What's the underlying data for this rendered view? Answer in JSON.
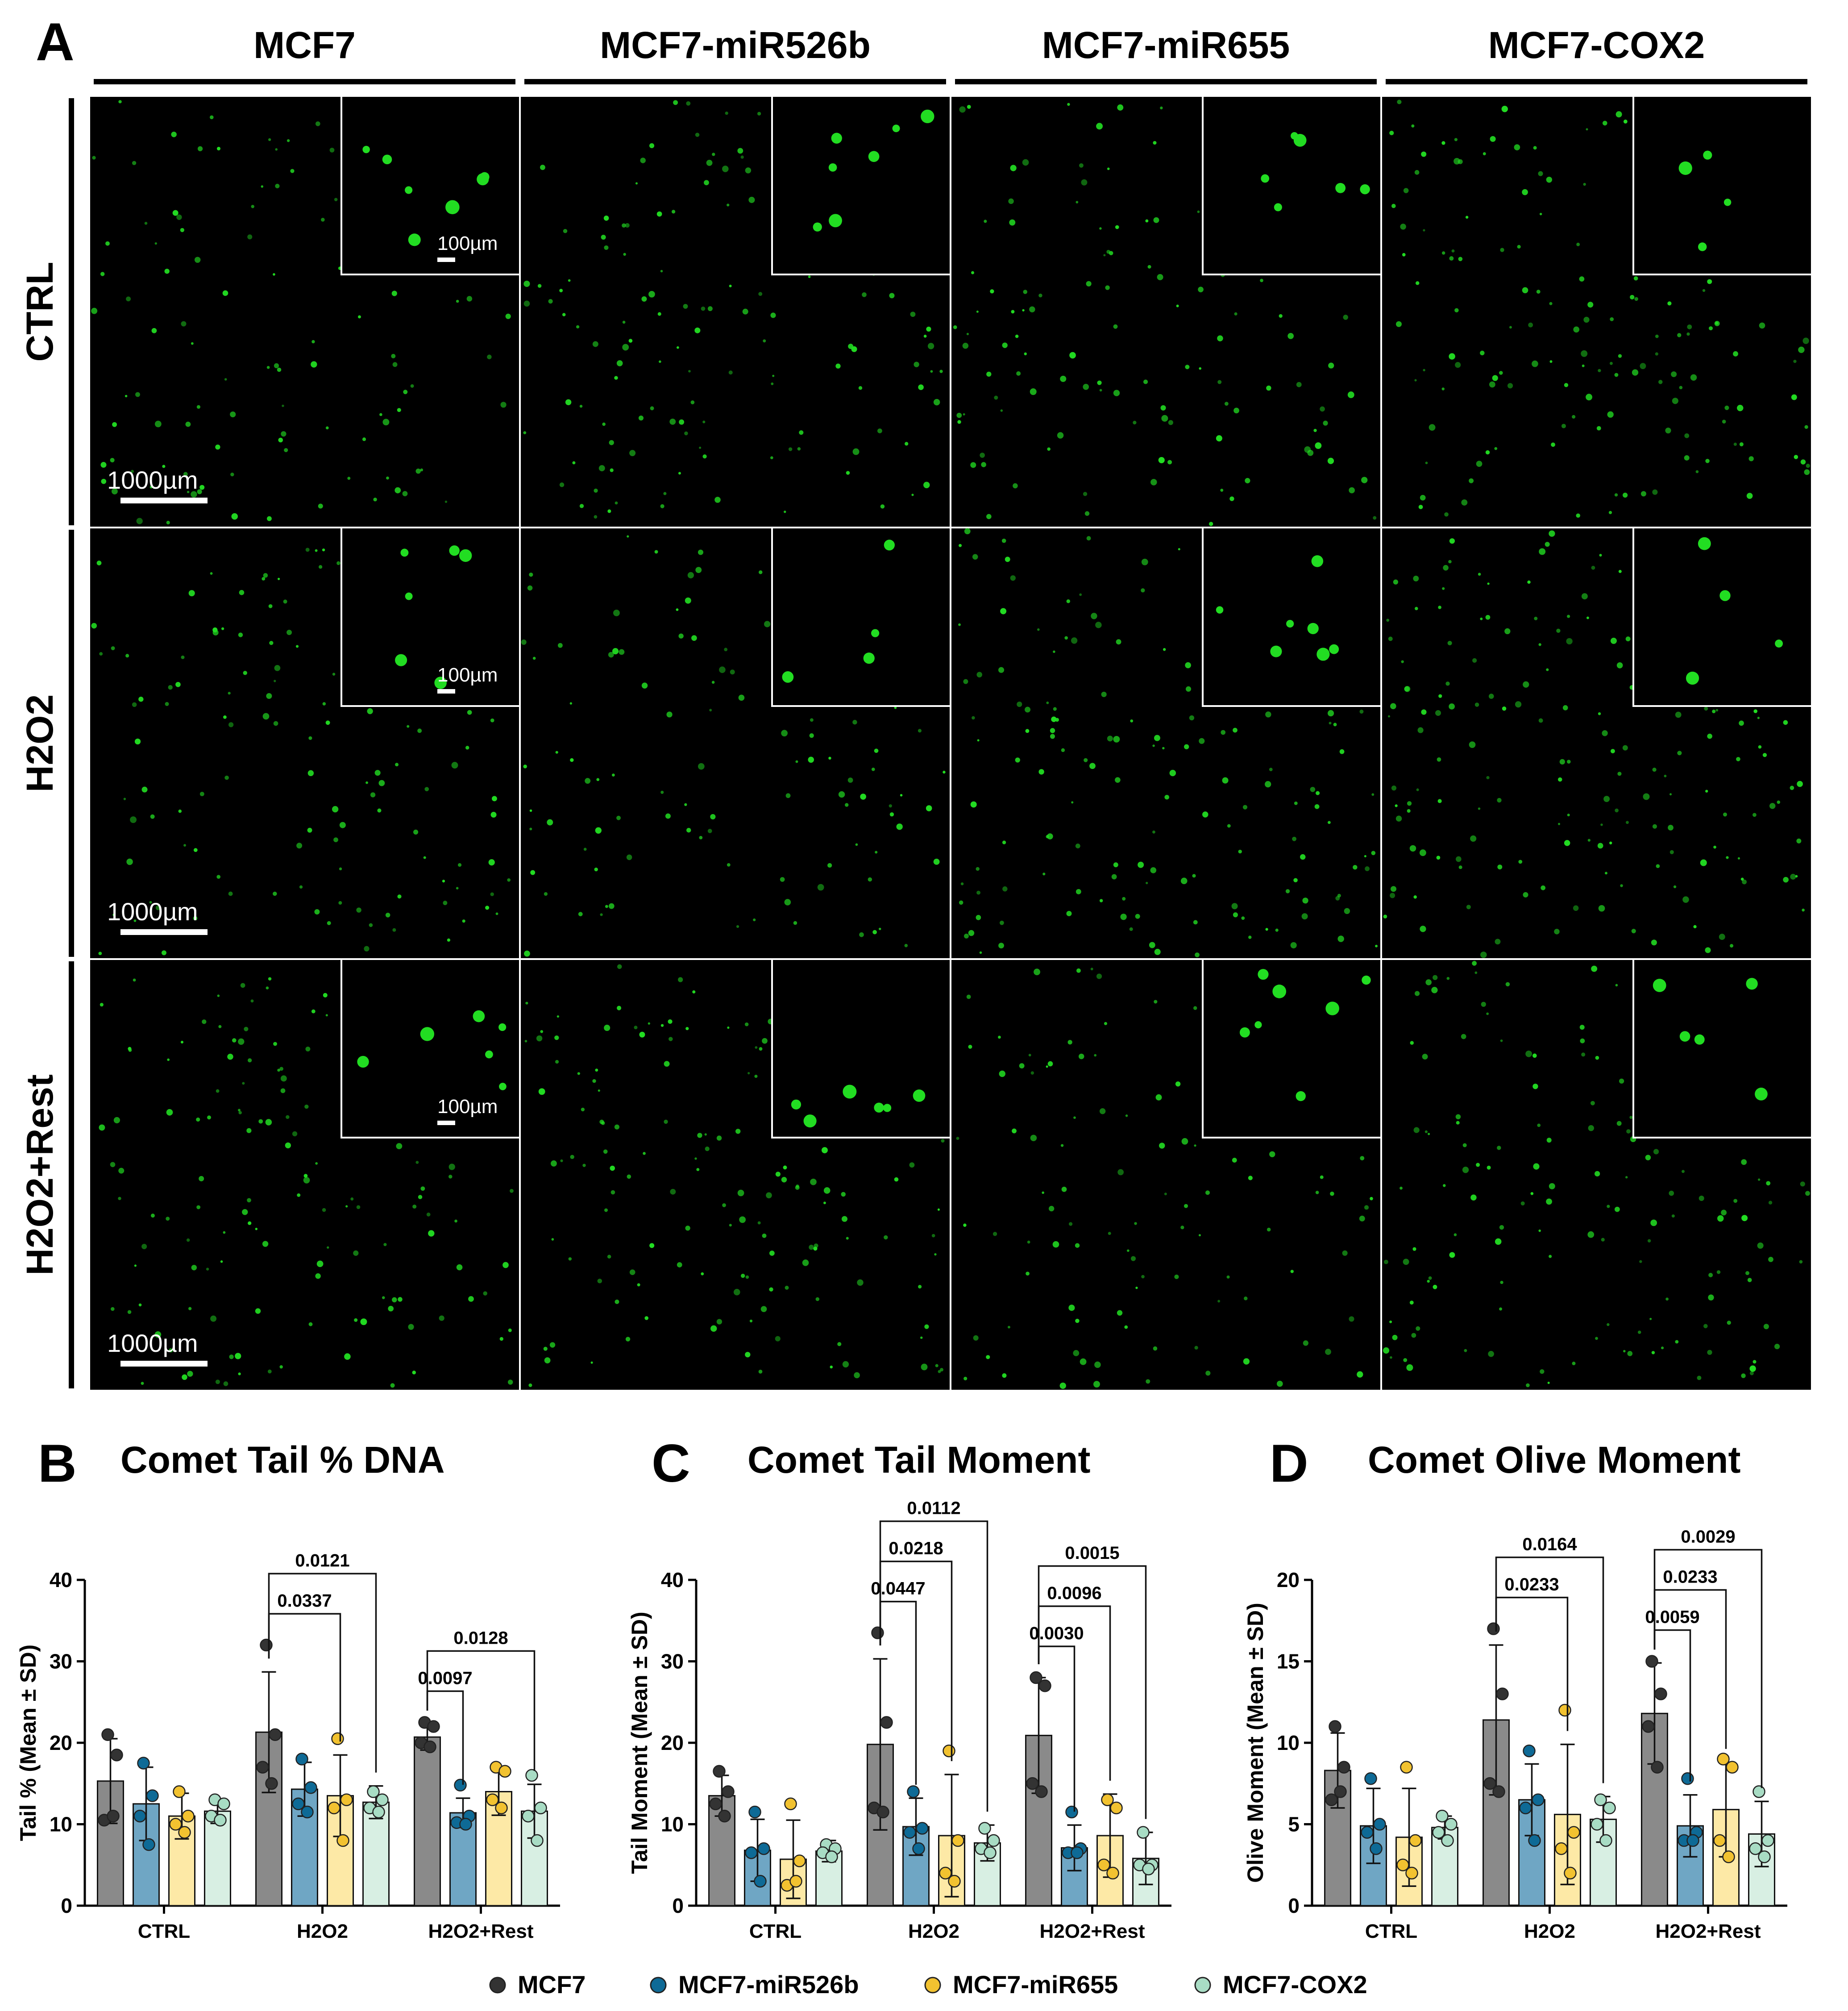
{
  "panel_letters": {
    "a": "A",
    "b": "B",
    "c": "C",
    "d": "D"
  },
  "microscopy": {
    "columns": [
      "MCF7",
      "MCF7-miR526b",
      "MCF7-miR655",
      "MCF7-COX2"
    ],
    "rows": [
      "CTRL",
      "H2O2",
      "H2O2+Rest"
    ],
    "scale_main": "1000µm",
    "scale_inset": "100µm",
    "stain_color": "#22dd22"
  },
  "legend": [
    "MCF7",
    "MCF7-miR526b",
    "MCF7-miR655",
    "MCF7-COX2"
  ],
  "colors": {
    "bars": [
      "#8a8a8a",
      "#6fa6c4",
      "#fde9a6",
      "#d8efe3"
    ],
    "dots": [
      "#333333",
      "#0e6a96",
      "#f2c230",
      "#a8dcc4"
    ]
  },
  "chart_data": [
    {
      "type": "bar",
      "title": "Comet Tail % DNA",
      "ylabel": "Tail % (Mean ± SD)",
      "ylim": [
        0,
        40
      ],
      "yticks": [
        0,
        10,
        20,
        30,
        40
      ],
      "categories": [
        "CTRL",
        "H2O2",
        "H2O2+Rest"
      ],
      "series": [
        {
          "name": "MCF7",
          "values": [
            15.3,
            21.3,
            20.7
          ],
          "sd": [
            5.2,
            7.4,
            1.6
          ],
          "points": [
            [
              21,
              18.5,
              10.5,
              11
            ],
            [
              32,
              21,
              17,
              15
            ],
            [
              22.5,
              22,
              20,
              19.5
            ]
          ]
        },
        {
          "name": "MCF7-miR526b",
          "values": [
            12.5,
            14.3,
            11.4
          ],
          "sd": [
            4.5,
            3.3,
            1.8
          ],
          "points": [
            [
              17.5,
              13.5,
              11,
              7.5
            ],
            [
              18,
              14.5,
              12.5,
              11.5
            ],
            [
              14.8,
              11,
              10.2,
              10
            ]
          ]
        },
        {
          "name": "MCF7-miR655",
          "values": [
            11,
            13.5,
            14
          ],
          "sd": [
            2.8,
            5,
            2.9
          ],
          "points": [
            [
              14,
              11,
              10,
              9
            ],
            [
              20.5,
              13,
              12,
              8
            ],
            [
              17,
              16.5,
              13,
              12
            ]
          ]
        },
        {
          "name": "MCF7-COX2",
          "values": [
            11.6,
            12.7,
            11.6
          ],
          "sd": [
            1.5,
            2,
            3.3
          ],
          "points": [
            [
              13,
              12.5,
              11,
              10.5
            ],
            [
              14,
              13,
              12,
              11.5
            ],
            [
              16,
              12,
              11,
              8
            ]
          ]
        }
      ],
      "comparisons": [
        {
          "group": 1,
          "from": 0,
          "to": 2,
          "label": "0.0337"
        },
        {
          "group": 1,
          "from": 0,
          "to": 3,
          "label": "0.0121"
        },
        {
          "group": 2,
          "from": 0,
          "to": 1,
          "label": "0.0097"
        },
        {
          "group": 2,
          "from": 0,
          "to": 3,
          "label": "0.0128"
        }
      ]
    },
    {
      "type": "bar",
      "title": "Comet Tail Moment",
      "ylabel": "Tail Moment (Mean ± SD)",
      "ylim": [
        0,
        40
      ],
      "yticks": [
        0,
        10,
        20,
        30,
        40
      ],
      "categories": [
        "CTRL",
        "H2O2",
        "H2O2+Rest"
      ],
      "series": [
        {
          "name": "MCF7",
          "values": [
            13.5,
            19.8,
            20.9
          ],
          "sd": [
            2.5,
            10.5,
            7.1
          ],
          "points": [
            [
              16.5,
              14,
              12.5,
              11
            ],
            [
              33.5,
              22.5,
              12,
              11.5
            ],
            [
              28,
              27,
              15,
              14
            ]
          ]
        },
        {
          "name": "MCF7-miR526b",
          "values": [
            6.8,
            9.7,
            7.1
          ],
          "sd": [
            3.8,
            3.5,
            2.8
          ],
          "points": [
            [
              11.5,
              7,
              6.5,
              3
            ],
            [
              14,
              9.5,
              9,
              7
            ],
            [
              11.5,
              7,
              6.5,
              6.5
            ]
          ]
        },
        {
          "name": "MCF7-miR655",
          "values": [
            5.7,
            8.6,
            8.6
          ],
          "sd": [
            4.8,
            7.5,
            5.1
          ],
          "points": [
            [
              12.5,
              5.5,
              2.5,
              3
            ],
            [
              19,
              8,
              4,
              3
            ],
            [
              13,
              12,
              5,
              4
            ]
          ]
        },
        {
          "name": "MCF7-COX2",
          "values": [
            6.7,
            7.7,
            5.8
          ],
          "sd": [
            1.3,
            2.2,
            3.2
          ],
          "points": [
            [
              7.5,
              7,
              6.5,
              6
            ],
            [
              9.5,
              8,
              7,
              6.5
            ],
            [
              9,
              5,
              5,
              4.5
            ]
          ]
        }
      ],
      "comparisons": [
        {
          "group": 1,
          "from": 0,
          "to": 1,
          "label": "0.0447"
        },
        {
          "group": 1,
          "from": 0,
          "to": 2,
          "label": "0.0218"
        },
        {
          "group": 1,
          "from": 0,
          "to": 3,
          "label": "0.0112"
        },
        {
          "group": 2,
          "from": 0,
          "to": 1,
          "label": "0.0030"
        },
        {
          "group": 2,
          "from": 0,
          "to": 2,
          "label": "0.0096"
        },
        {
          "group": 2,
          "from": 0,
          "to": 3,
          "label": "0.0015"
        }
      ]
    },
    {
      "type": "bar",
      "title": "Comet Olive Moment",
      "ylabel": "Olive Moment (Mean ± SD)",
      "ylim": [
        0,
        20
      ],
      "yticks": [
        0,
        5,
        10,
        15,
        20
      ],
      "categories": [
        "CTRL",
        "H2O2",
        "H2O2+Rest"
      ],
      "series": [
        {
          "name": "MCF7",
          "values": [
            8.3,
            11.4,
            11.8
          ],
          "sd": [
            2.3,
            4.6,
            3.1
          ],
          "points": [
            [
              11,
              8.5,
              6.5,
              7
            ],
            [
              17,
              13,
              7.5,
              7
            ],
            [
              15,
              13,
              11,
              8.5
            ]
          ]
        },
        {
          "name": "MCF7-miR526b",
          "values": [
            4.9,
            6.5,
            4.9
          ],
          "sd": [
            2.3,
            2.2,
            1.9
          ],
          "points": [
            [
              7.8,
              5,
              4.5,
              3.5
            ],
            [
              9.5,
              6.5,
              6,
              4
            ],
            [
              7.8,
              4.5,
              4,
              4
            ]
          ]
        },
        {
          "name": "MCF7-miR655",
          "values": [
            4.2,
            5.6,
            5.9
          ],
          "sd": [
            3,
            4.3,
            2.9
          ],
          "points": [
            [
              8.5,
              4,
              2.5,
              2
            ],
            [
              12,
              4.5,
              3.5,
              2
            ],
            [
              9,
              8.5,
              4,
              3
            ]
          ]
        },
        {
          "name": "MCF7-COX2",
          "values": [
            4.8,
            5.3,
            4.4
          ],
          "sd": [
            0.7,
            1.4,
            2
          ],
          "points": [
            [
              5.5,
              5,
              4.5,
              4
            ],
            [
              6.5,
              6,
              5,
              4
            ],
            [
              7,
              4,
              3.5,
              3
            ]
          ]
        }
      ],
      "comparisons": [
        {
          "group": 1,
          "from": 0,
          "to": 2,
          "label": "0.0233"
        },
        {
          "group": 1,
          "from": 0,
          "to": 3,
          "label": "0.0164"
        },
        {
          "group": 2,
          "from": 0,
          "to": 1,
          "label": "0.0059"
        },
        {
          "group": 2,
          "from": 0,
          "to": 2,
          "label": "0.0233"
        },
        {
          "group": 2,
          "from": 0,
          "to": 3,
          "label": "0.0029"
        }
      ]
    }
  ]
}
